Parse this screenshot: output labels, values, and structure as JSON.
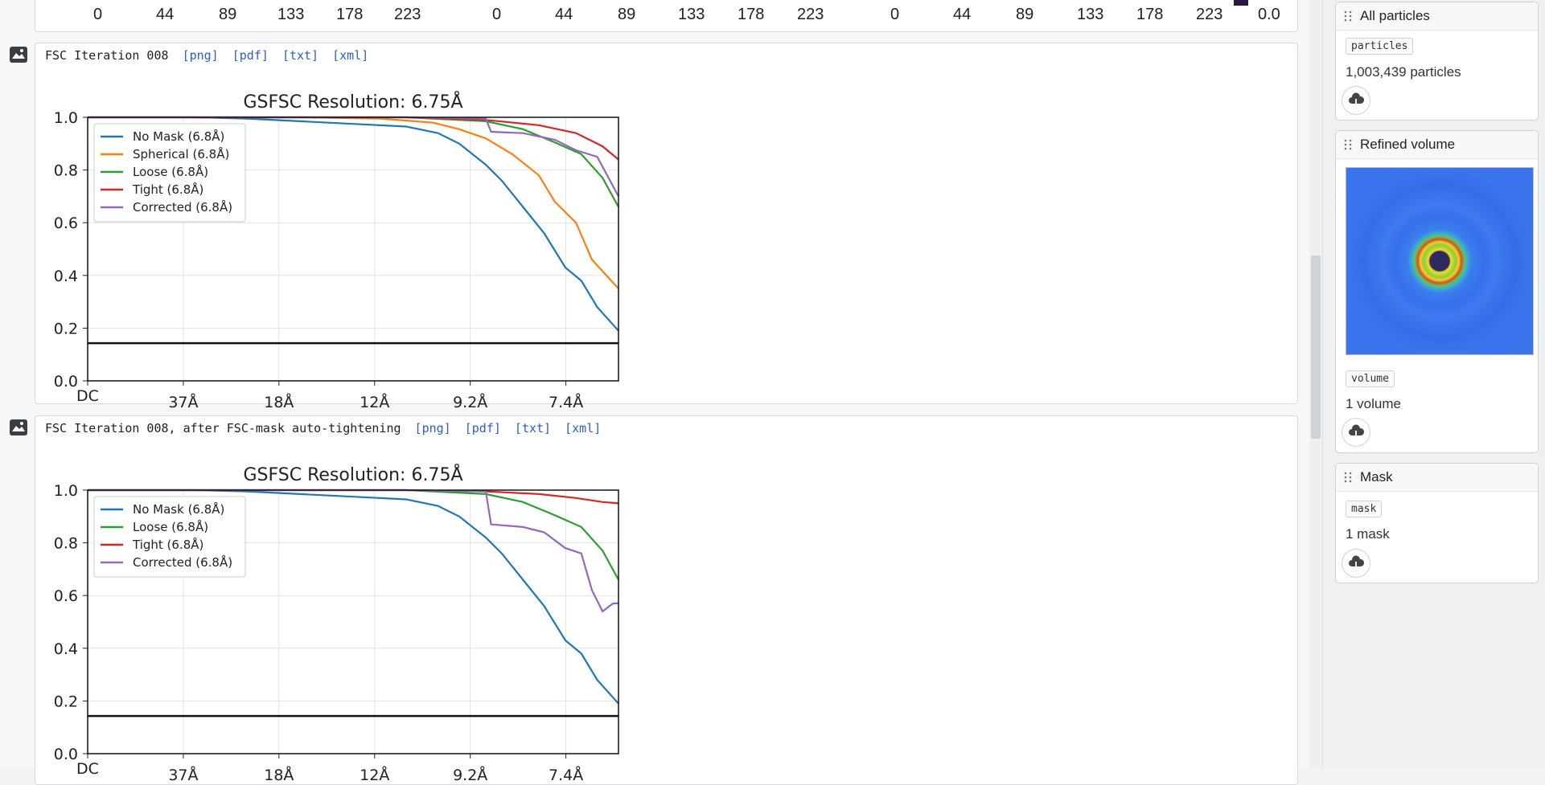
{
  "axisbar": {
    "labels": [
      "0",
      "44",
      "89",
      "133",
      "178",
      "223",
      "0",
      "44",
      "89",
      "133",
      "178",
      "223",
      "0",
      "44",
      "89",
      "133",
      "178",
      "223",
      "0.0"
    ]
  },
  "cards": [
    {
      "title": "FSC Iteration 008",
      "links": [
        "[png]",
        "[pdf]",
        "[txt]",
        "[xml]"
      ]
    },
    {
      "title": "FSC Iteration 008, after FSC-mask auto-tightening",
      "links": [
        "[png]",
        "[pdf]",
        "[txt]",
        "[xml]"
      ]
    }
  ],
  "chart_data": [
    {
      "type": "line",
      "title": "GSFSC Resolution: 6.75Å",
      "xticks": [
        "DC",
        "37Å",
        "18Å",
        "12Å",
        "9.2Å",
        "7.4Å"
      ],
      "yticks": [
        "0.0",
        "0.2",
        "0.4",
        "0.6",
        "0.8",
        "1.0"
      ],
      "ylim": [
        0,
        1
      ],
      "xlim": [
        0,
        1
      ],
      "threshold": 0.143,
      "grid": true,
      "legend_position": "top-left",
      "series": [
        {
          "name": "No Mask (6.8Å)",
          "color": "#1f77b4",
          "x": [
            0,
            0.1,
            0.2,
            0.3,
            0.4,
            0.5,
            0.6,
            0.66,
            0.7,
            0.75,
            0.78,
            0.82,
            0.86,
            0.9,
            0.93,
            0.96,
            1.0
          ],
          "y": [
            1,
            1,
            1,
            0.995,
            0.985,
            0.975,
            0.965,
            0.94,
            0.9,
            0.82,
            0.76,
            0.66,
            0.56,
            0.43,
            0.38,
            0.28,
            0.19
          ]
        },
        {
          "name": "Spherical (6.8Å)",
          "color": "#ff7f0e",
          "x": [
            0,
            0.2,
            0.4,
            0.55,
            0.65,
            0.7,
            0.75,
            0.8,
            0.85,
            0.88,
            0.92,
            0.95,
            1.0
          ],
          "y": [
            1,
            1,
            1,
            0.995,
            0.98,
            0.955,
            0.92,
            0.86,
            0.78,
            0.68,
            0.6,
            0.46,
            0.35
          ]
        },
        {
          "name": "Loose (6.8Å)",
          "color": "#2ca02c",
          "x": [
            0,
            0.3,
            0.6,
            0.75,
            0.82,
            0.88,
            0.93,
            0.97,
            1.0
          ],
          "y": [
            1,
            1,
            1,
            0.985,
            0.955,
            0.905,
            0.86,
            0.77,
            0.66
          ]
        },
        {
          "name": "Tight (6.8Å)",
          "color": "#d62728",
          "x": [
            0,
            0.3,
            0.6,
            0.75,
            0.85,
            0.92,
            0.97,
            1.0
          ],
          "y": [
            1,
            1,
            1,
            0.99,
            0.97,
            0.94,
            0.89,
            0.84
          ]
        },
        {
          "name": "Corrected (6.8Å)",
          "color": "#9467bd",
          "x": [
            0,
            0.6,
            0.75,
            0.76,
            0.82,
            0.88,
            0.92,
            0.96,
            1.0
          ],
          "y": [
            1,
            1,
            0.995,
            0.945,
            0.94,
            0.915,
            0.875,
            0.85,
            0.7
          ]
        }
      ]
    },
    {
      "type": "line",
      "title": "GSFSC Resolution: 6.75Å",
      "xticks": [
        "DC",
        "37Å",
        "18Å",
        "12Å",
        "9.2Å",
        "7.4Å"
      ],
      "yticks": [
        "0.0",
        "0.2",
        "0.4",
        "0.6",
        "0.8",
        "1.0"
      ],
      "ylim": [
        0,
        1
      ],
      "xlim": [
        0,
        1
      ],
      "threshold": 0.143,
      "grid": true,
      "legend_position": "top-left",
      "series": [
        {
          "name": "No Mask (6.8Å)",
          "color": "#1f77b4",
          "x": [
            0,
            0.1,
            0.2,
            0.3,
            0.4,
            0.5,
            0.6,
            0.66,
            0.7,
            0.75,
            0.78,
            0.82,
            0.86,
            0.9,
            0.93,
            0.96,
            1.0
          ],
          "y": [
            1,
            1,
            1,
            0.995,
            0.985,
            0.975,
            0.965,
            0.94,
            0.9,
            0.82,
            0.76,
            0.66,
            0.56,
            0.43,
            0.38,
            0.28,
            0.19
          ]
        },
        {
          "name": "Loose (6.8Å)",
          "color": "#2ca02c",
          "x": [
            0,
            0.3,
            0.6,
            0.75,
            0.82,
            0.88,
            0.93,
            0.97,
            1.0
          ],
          "y": [
            1,
            1,
            1,
            0.985,
            0.955,
            0.905,
            0.86,
            0.77,
            0.66
          ]
        },
        {
          "name": "Tight (6.8Å)",
          "color": "#d62728",
          "x": [
            0,
            0.3,
            0.6,
            0.75,
            0.85,
            0.92,
            0.97,
            1.0
          ],
          "y": [
            1,
            1,
            1,
            0.995,
            0.985,
            0.97,
            0.955,
            0.95
          ]
        },
        {
          "name": "Corrected (6.8Å)",
          "color": "#9467bd",
          "x": [
            0,
            0.6,
            0.75,
            0.76,
            0.82,
            0.86,
            0.9,
            0.93,
            0.95,
            0.97,
            0.99,
            1.0
          ],
          "y": [
            1,
            1,
            0.995,
            0.87,
            0.86,
            0.84,
            0.78,
            0.76,
            0.62,
            0.54,
            0.57,
            0.57
          ]
        }
      ]
    }
  ],
  "sidebar": {
    "panels": [
      {
        "title": "All particles",
        "tag": "particles",
        "count": "1,003,439 particles"
      },
      {
        "title": "Refined volume",
        "tag": "volume",
        "count": "1 volume"
      },
      {
        "title": "Mask",
        "tag": "mask",
        "count": "1 mask"
      }
    ]
  }
}
